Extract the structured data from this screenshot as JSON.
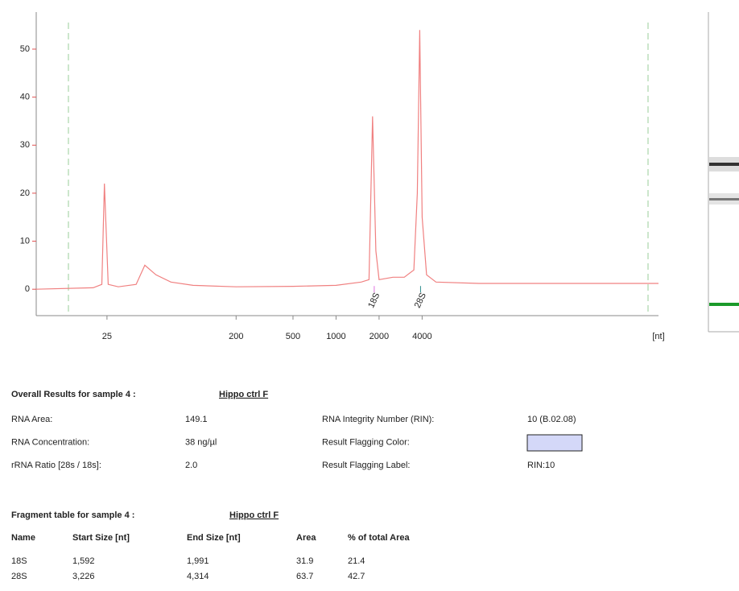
{
  "chart_data": {
    "type": "line",
    "xscale": "log",
    "xlabel": "[nt]",
    "x": [
      8,
      20,
      23,
      24,
      25.5,
      30,
      40,
      46,
      55,
      70,
      100,
      200,
      500,
      1000,
      1500,
      1700,
      1800,
      1900,
      2000,
      2500,
      3000,
      3500,
      3700,
      3850,
      4000,
      4300,
      5000,
      10000,
      180000
    ],
    "values": [
      0,
      0.3,
      1,
      22,
      1,
      0.5,
      1,
      5,
      3,
      1.5,
      0.8,
      0.5,
      0.6,
      0.8,
      1.5,
      2,
      36,
      8,
      2,
      2.5,
      2.5,
      4,
      20,
      54,
      15,
      3,
      1.5,
      1.2,
      1.2
    ],
    "color": "#f08080",
    "xlim": [
      8,
      180000
    ],
    "xticks": [
      25,
      200,
      500,
      1000,
      2000,
      4000
    ],
    "ylim": [
      -5.5,
      55.2
    ],
    "yticks": [
      0,
      10,
      20,
      30,
      40,
      50
    ],
    "peaks": [
      {
        "label": "18S",
        "x": 1850,
        "color": "#e070e0"
      },
      {
        "label": "28S",
        "x": 3900,
        "color": "#2a8a8a"
      }
    ]
  },
  "results": {
    "title": "Overall Results for sample 4 :",
    "sample": "Hippo ctrl F",
    "rows": [
      [
        "RNA Area:",
        "149.1",
        "RNA Integrity Number (RIN):",
        "10   (B.02.08)"
      ],
      [
        "RNA Concentration:",
        "38 ng/µl",
        "Result Flagging Color:",
        null
      ],
      [
        "rRNA Ratio [28s / 18s]:",
        "2.0",
        "Result Flagging Label:",
        "RIN:10"
      ]
    ],
    "flag_color": "#d4d8f8"
  },
  "fragments": {
    "title": "Fragment table for sample 4 :",
    "sample": "Hippo ctrl F",
    "header": [
      "Name",
      "Start Size [nt]",
      "End Size [nt]",
      "Area",
      "% of total Area"
    ],
    "rows": [
      [
        "18S",
        "1,592",
        "1,991",
        "31.9",
        "21.4"
      ],
      [
        "28S",
        "3,226",
        "4,314",
        "63.7",
        "42.7"
      ]
    ]
  }
}
